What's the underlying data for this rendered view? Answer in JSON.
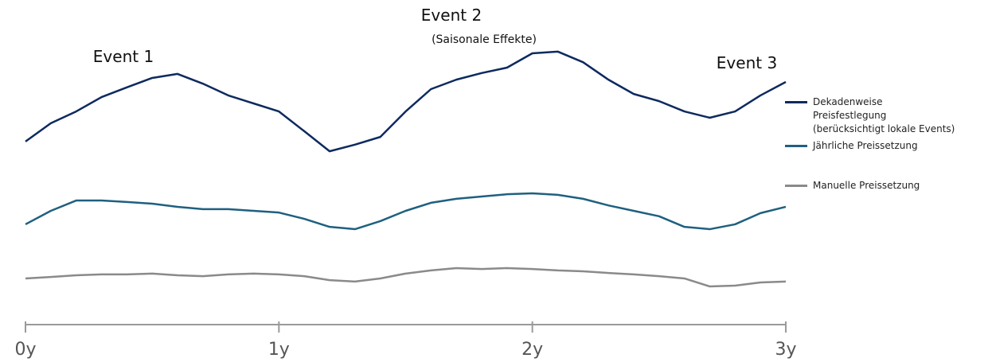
{
  "chart_data": {
    "type": "line",
    "annotations": [
      "Event 1",
      "Event 2",
      "(Saisonale Effekte)",
      "Event 3"
    ],
    "x": [
      0,
      0.1,
      0.2,
      0.3,
      0.4,
      0.5,
      0.6,
      0.7,
      0.8,
      0.9,
      1.0,
      1.1,
      1.2,
      1.3,
      1.4,
      1.5,
      1.6,
      1.7,
      1.8,
      1.9,
      2.0,
      2.1,
      2.2,
      2.3,
      2.4,
      2.5,
      2.6,
      2.7,
      2.8,
      2.9,
      3.0
    ],
    "xlim": [
      0,
      3
    ],
    "xticks": [
      {
        "value": 0,
        "label": "0y"
      },
      {
        "value": 1,
        "label": "1y"
      },
      {
        "value": 2,
        "label": "2y"
      },
      {
        "value": 3,
        "label": "3y"
      }
    ],
    "ylim": [
      0,
      100
    ],
    "legend": "right",
    "series": [
      {
        "name": "Dekadenweise Preisfestlegung (berücksichtigt lokale Events)",
        "color": "#0d2a5e",
        "values": [
          61.7,
          68.1,
          72.2,
          77.2,
          80.6,
          83.9,
          85.3,
          81.9,
          77.8,
          75.0,
          72.2,
          65.3,
          58.3,
          60.6,
          63.3,
          72.2,
          80.0,
          83.3,
          85.6,
          87.5,
          92.5,
          93.1,
          89.4,
          83.3,
          78.3,
          75.8,
          72.2,
          70.0,
          72.2,
          77.8,
          82.5
        ]
      },
      {
        "name": "Jährliche Preissetzung",
        "color": "#1f6080",
        "values": [
          32.8,
          37.5,
          41.1,
          41.1,
          40.6,
          40.0,
          38.9,
          38.1,
          38.1,
          37.5,
          36.9,
          34.7,
          31.9,
          31.1,
          33.9,
          37.5,
          40.3,
          41.7,
          42.5,
          43.3,
          43.6,
          43.1,
          41.7,
          39.4,
          37.5,
          35.6,
          31.9,
          31.1,
          32.8,
          36.7,
          38.9
        ]
      },
      {
        "name": "Manuelle Preissetzung",
        "color": "#8a8a8a",
        "values": [
          13.9,
          14.4,
          15.0,
          15.3,
          15.3,
          15.6,
          15.0,
          14.7,
          15.3,
          15.6,
          15.3,
          14.7,
          13.3,
          12.8,
          13.9,
          15.6,
          16.7,
          17.5,
          17.2,
          17.5,
          17.2,
          16.7,
          16.4,
          15.8,
          15.3,
          14.7,
          13.9,
          11.1,
          11.4,
          12.5,
          12.8
        ]
      }
    ]
  }
}
